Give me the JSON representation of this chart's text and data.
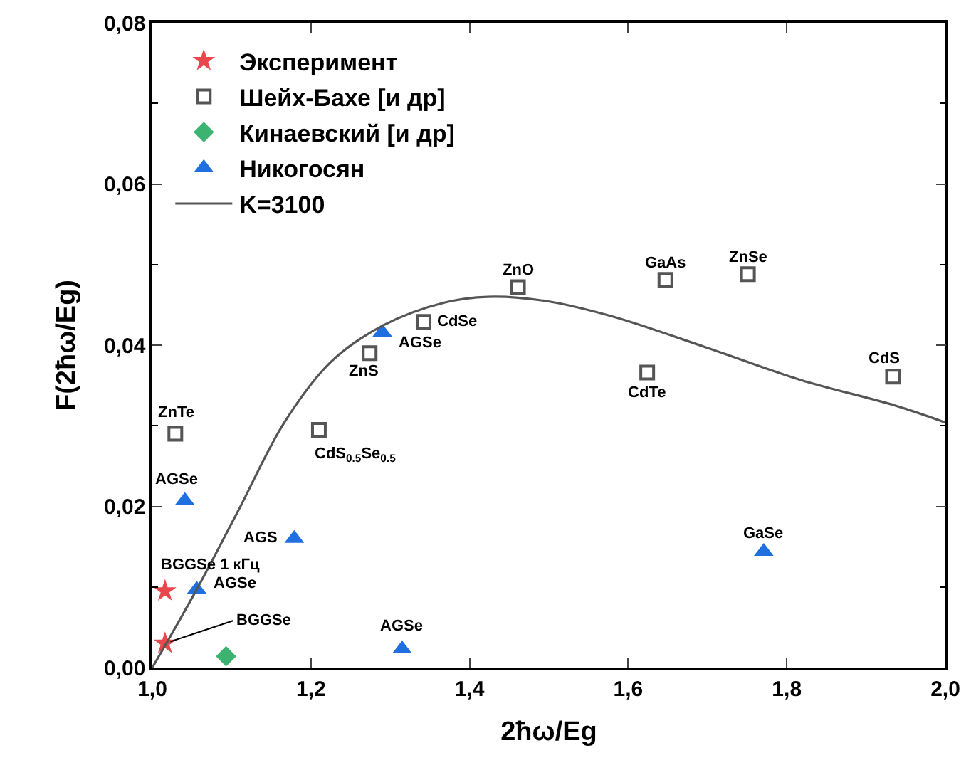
{
  "chart_data": {
    "type": "scatter",
    "xlabel": "2ħω/Eg",
    "ylabel": "F(2ħω/Eg)",
    "xlim": [
      1.0,
      2.0
    ],
    "ylim": [
      0,
      0.08
    ],
    "xticks": [
      {
        "value": 1.0,
        "label": "1,0"
      },
      {
        "value": 1.2,
        "label": "1,2"
      },
      {
        "value": 1.4,
        "label": "1,4"
      },
      {
        "value": 1.6,
        "label": "1,6"
      },
      {
        "value": 1.8,
        "label": "1,8"
      },
      {
        "value": 2.0,
        "label": "2,0"
      }
    ],
    "yticks": [
      {
        "value": 0,
        "label": "0,00"
      },
      {
        "value": 0.02,
        "label": "0,02"
      },
      {
        "value": 0.04,
        "label": "0,04"
      },
      {
        "value": 0.06,
        "label": "0,06"
      },
      {
        "value": 0.08,
        "label": "0,08"
      }
    ],
    "legend": "top left",
    "series": [
      {
        "name": "Эксперимент",
        "marker": "star",
        "color": "#e8474b",
        "x": [
          1.016,
          1.016
        ],
        "values": [
          0.0095,
          0.003
        ]
      },
      {
        "name": "Шейх-Бахе [и др]",
        "marker": "square",
        "color": "#555555",
        "x": [
          1.029,
          1.21,
          1.274,
          1.342,
          1.461,
          1.647,
          1.751,
          1.624,
          1.934
        ],
        "values": [
          0.029,
          0.0295,
          0.039,
          0.0429,
          0.0472,
          0.0481,
          0.0488,
          0.0366,
          0.0361
        ]
      },
      {
        "name": "Кинаевский [и др]",
        "marker": "diamond",
        "color": "#3cb371",
        "x": [
          1.093
        ],
        "values": [
          0.0014
        ]
      },
      {
        "name": "Никогосян",
        "marker": "triangle",
        "color": "#1f6fe0",
        "x": [
          1.041,
          1.179,
          1.056,
          1.315,
          1.29,
          1.771
        ],
        "values": [
          0.0207,
          0.016,
          0.0097,
          0.0023,
          0.0416,
          0.0144
        ]
      },
      {
        "name": "K=3100",
        "type": "line",
        "marker": "none",
        "line_style": "solid",
        "color": "#555555",
        "x": [
          1.0,
          1.056,
          1.108,
          1.167,
          1.226,
          1.292,
          1.369,
          1.423,
          1.495,
          1.579,
          1.699,
          1.817,
          1.937,
          2.0
        ],
        "values": [
          0,
          0.0097,
          0.0194,
          0.0305,
          0.038,
          0.0425,
          0.0453,
          0.046,
          0.0455,
          0.0436,
          0.0397,
          0.0357,
          0.0325,
          0.0304
        ]
      }
    ],
    "annotations": [
      {
        "text": "ZnTe",
        "x": 1.029,
        "y": 0.029
      },
      {
        "text": "CdS$_{0.5}$Se$_{0.5}$",
        "x": 1.21,
        "y": 0.0295
      },
      {
        "text": "ZnS",
        "x": 1.274,
        "y": 0.039
      },
      {
        "text": "CdSe",
        "x": 1.342,
        "y": 0.0429
      },
      {
        "text": "ZnO",
        "x": 1.461,
        "y": 0.0472
      },
      {
        "text": "GaAs",
        "x": 1.647,
        "y": 0.0481
      },
      {
        "text": "ZnSe",
        "x": 1.751,
        "y": 0.0488
      },
      {
        "text": "CdTe",
        "x": 1.624,
        "y": 0.0366
      },
      {
        "text": "CdS",
        "x": 1.934,
        "y": 0.0361
      },
      {
        "text": "AGSe",
        "x": 1.041,
        "y": 0.0207
      },
      {
        "text": "AGS",
        "x": 1.179,
        "y": 0.016
      },
      {
        "text": "AGSe",
        "x": 1.056,
        "y": 0.0097
      },
      {
        "text": "AGSe",
        "x": 1.315,
        "y": 0.0023
      },
      {
        "text": "AGSe",
        "x": 1.29,
        "y": 0.0416
      },
      {
        "text": "GaSe",
        "x": 1.771,
        "y": 0.0144
      },
      {
        "text": "BGGSe 1 кГц",
        "x": 1.016,
        "y": 0.0095
      },
      {
        "text": "BGGSe",
        "x": 1.016,
        "y": 0.003
      }
    ]
  }
}
